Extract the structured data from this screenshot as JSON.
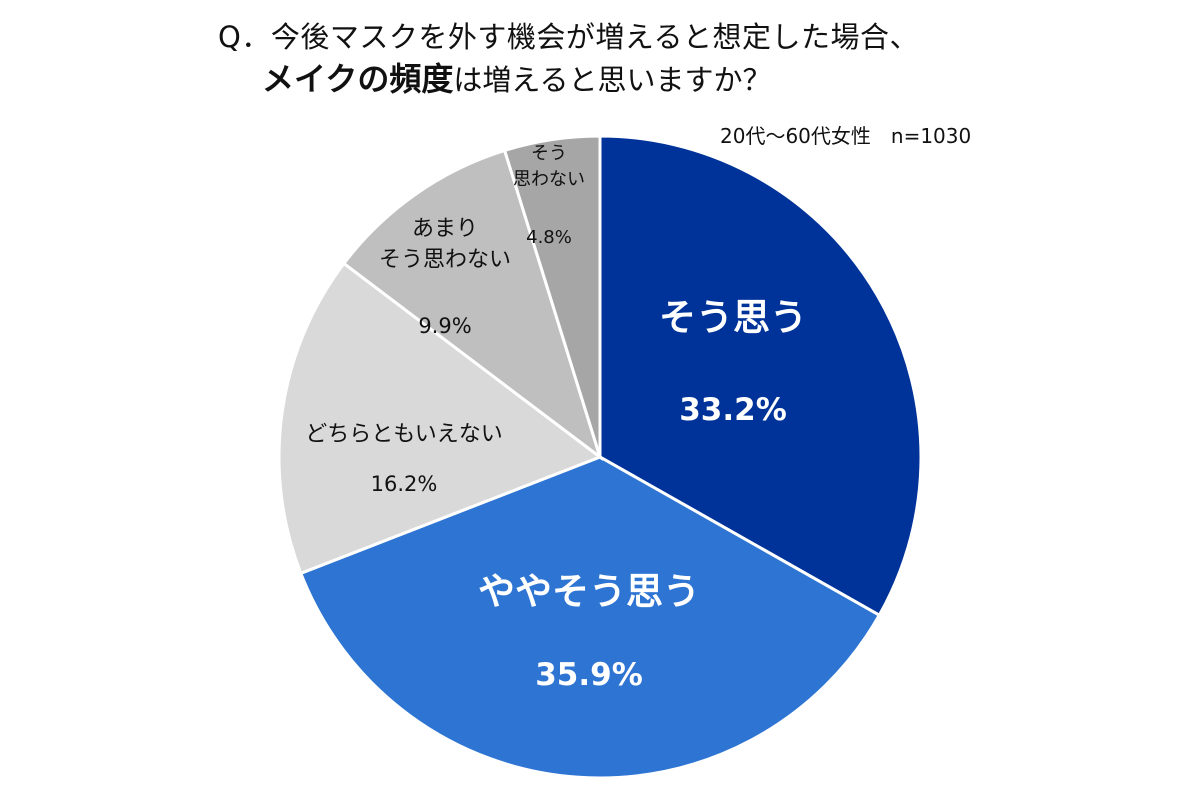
{
  "header": {
    "question_line1": "Q．今後マスクを外す機会が増えると想定した場合、",
    "question_emphasis": "メイクの頻度",
    "question_line2_rest": "は増えると思いますか？",
    "sample_note": "20代～60代女性　n=1030"
  },
  "chart_data": {
    "type": "pie",
    "title": "Q．今後マスクを外す機会が増えると想定した場合、メイクの頻度は増えると思いますか？",
    "subtitle": "20代～60代女性　n=1030",
    "start": "12 o'clock",
    "direction": "clockwise",
    "slices": [
      {
        "label": "そう思う",
        "value": 33.2,
        "value_label": "33.2%",
        "color": "#003399",
        "text_color": "#ffffff",
        "bold": true
      },
      {
        "label": "ややそう思う",
        "value": 35.9,
        "value_label": "35.9%",
        "color": "#2e75d3",
        "text_color": "#ffffff",
        "bold": true
      },
      {
        "label": "どちらともいえない",
        "value": 16.2,
        "value_label": "16.2%",
        "color": "#d9d9d9",
        "text_color": "#111111",
        "bold": false
      },
      {
        "label": "あまり\nそう思わない",
        "value": 9.9,
        "value_label": "9.9%",
        "color": "#bfbfbf",
        "text_color": "#111111",
        "bold": false
      },
      {
        "label": "そう\n思わない",
        "value": 4.8,
        "value_label": "4.8%",
        "color": "#a6a6a6",
        "text_color": "#111111",
        "bold": false
      }
    ]
  }
}
